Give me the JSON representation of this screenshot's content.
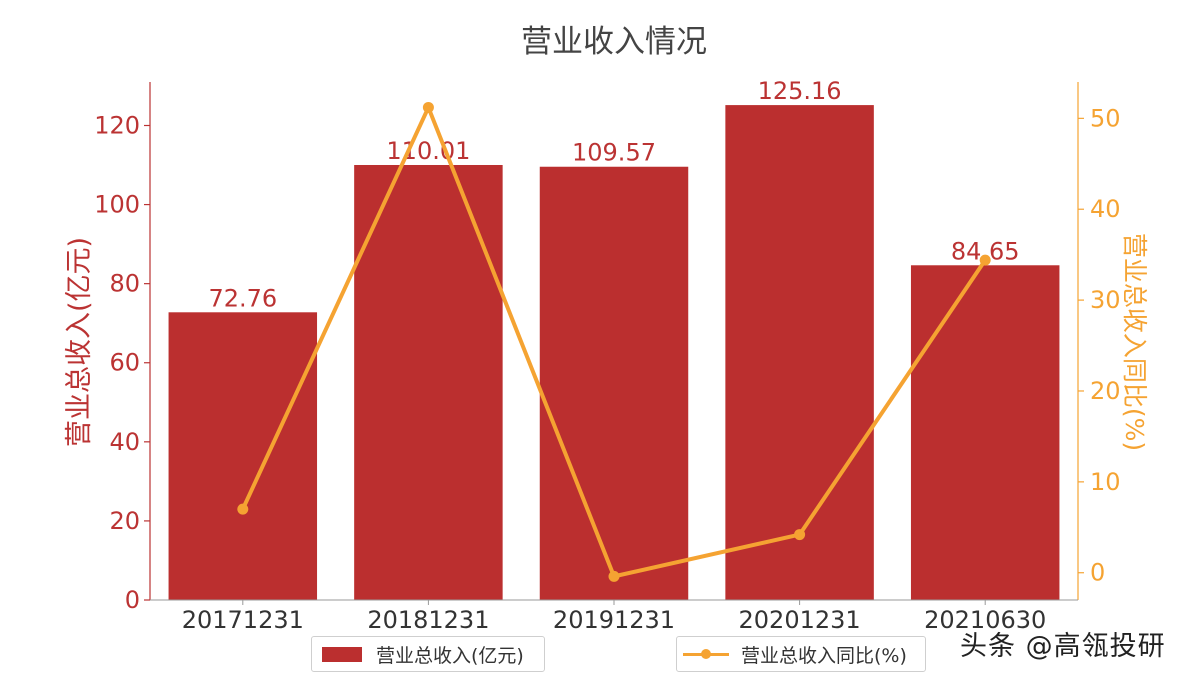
{
  "chart_data": {
    "type": "bar",
    "title": "营业收入情况",
    "categories": [
      "20171231",
      "20181231",
      "20191231",
      "20201231",
      "20210630"
    ],
    "series": [
      {
        "name": "营业总收入(亿元)",
        "type": "bar",
        "axis": "left",
        "values": [
          72.76,
          110.01,
          109.57,
          125.16,
          84.65
        ],
        "labels": [
          "72.76",
          "110.01",
          "109.57",
          "125.16",
          "84.65"
        ]
      },
      {
        "name": "营业总收入同比(%)",
        "type": "line",
        "axis": "right",
        "values": [
          7.0,
          51.2,
          -0.4,
          4.2,
          34.4
        ]
      }
    ],
    "ylabel_left": "营业总收入(亿元)",
    "ylabel_right": "营业总收入同比(%)",
    "ylim_left": [
      0,
      131
    ],
    "ylim_right": [
      -3,
      54
    ],
    "yticks_left": [
      0,
      20,
      40,
      60,
      80,
      100,
      120
    ],
    "yticks_right": [
      0,
      10,
      20,
      30,
      40,
      50
    ],
    "grid": false,
    "legend_position": "bottom"
  },
  "colors": {
    "bar": "#bb2f2f",
    "line": "#f5a332",
    "left_axis": "#bb3333",
    "right_axis": "#f5a332",
    "title": "#444444",
    "text": "#333333"
  },
  "watermark": "头条 @高瓴投研"
}
